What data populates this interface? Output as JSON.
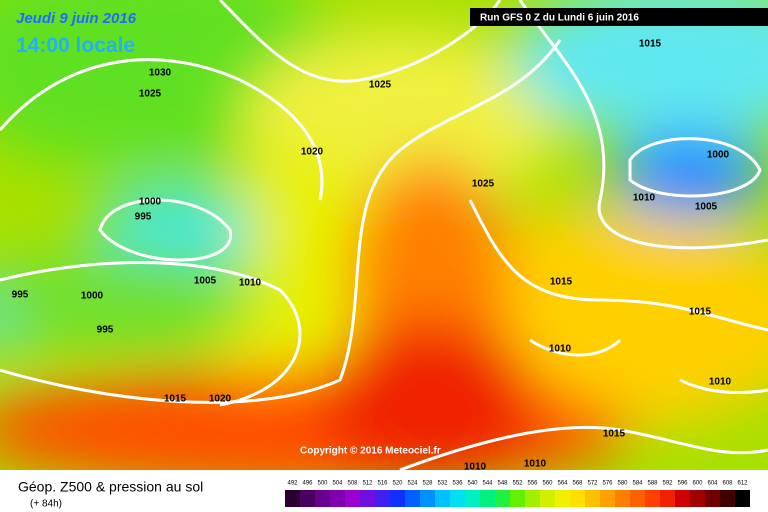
{
  "header": {
    "date": "Jeudi 9 juin 2016",
    "time": "14:00 locale",
    "run": "Run GFS 0 Z du Lundi 6 juin 2016"
  },
  "copyright": "Copyright © 2016 Meteociel.fr",
  "isobar_labels": [
    1030,
    1025,
    1025,
    1020,
    1025,
    1000,
    995,
    1005,
    1010,
    995,
    1000,
    995,
    1015,
    1020,
    1015,
    1000,
    1010,
    1005,
    1015,
    1015,
    1010,
    1010,
    1015,
    1010,
    1010
  ],
  "footer": {
    "title": "Géop. Z500 & pression au sol",
    "lead": "(+ 84h)"
  },
  "scale": {
    "values": [
      492,
      496,
      500,
      504,
      508,
      512,
      516,
      520,
      524,
      528,
      532,
      536,
      540,
      544,
      548,
      552,
      556,
      560,
      564,
      568,
      572,
      576,
      580,
      584,
      588,
      592,
      596,
      600,
      604,
      608,
      612
    ],
    "colors": [
      "#2a0030",
      "#4a0060",
      "#6a0090",
      "#8000b0",
      "#9a00d0",
      "#7010e0",
      "#4020f0",
      "#1030ff",
      "#0060ff",
      "#0090ff",
      "#00c0ff",
      "#00e0f0",
      "#00f0c0",
      "#00f080",
      "#20f040",
      "#60f000",
      "#a0f000",
      "#d0f000",
      "#f0f000",
      "#ffe000",
      "#ffc000",
      "#ffa000",
      "#ff8000",
      "#ff6000",
      "#ff4000",
      "#f02000",
      "#d00000",
      "#a00000",
      "#700000",
      "#400000",
      "#000000"
    ]
  }
}
